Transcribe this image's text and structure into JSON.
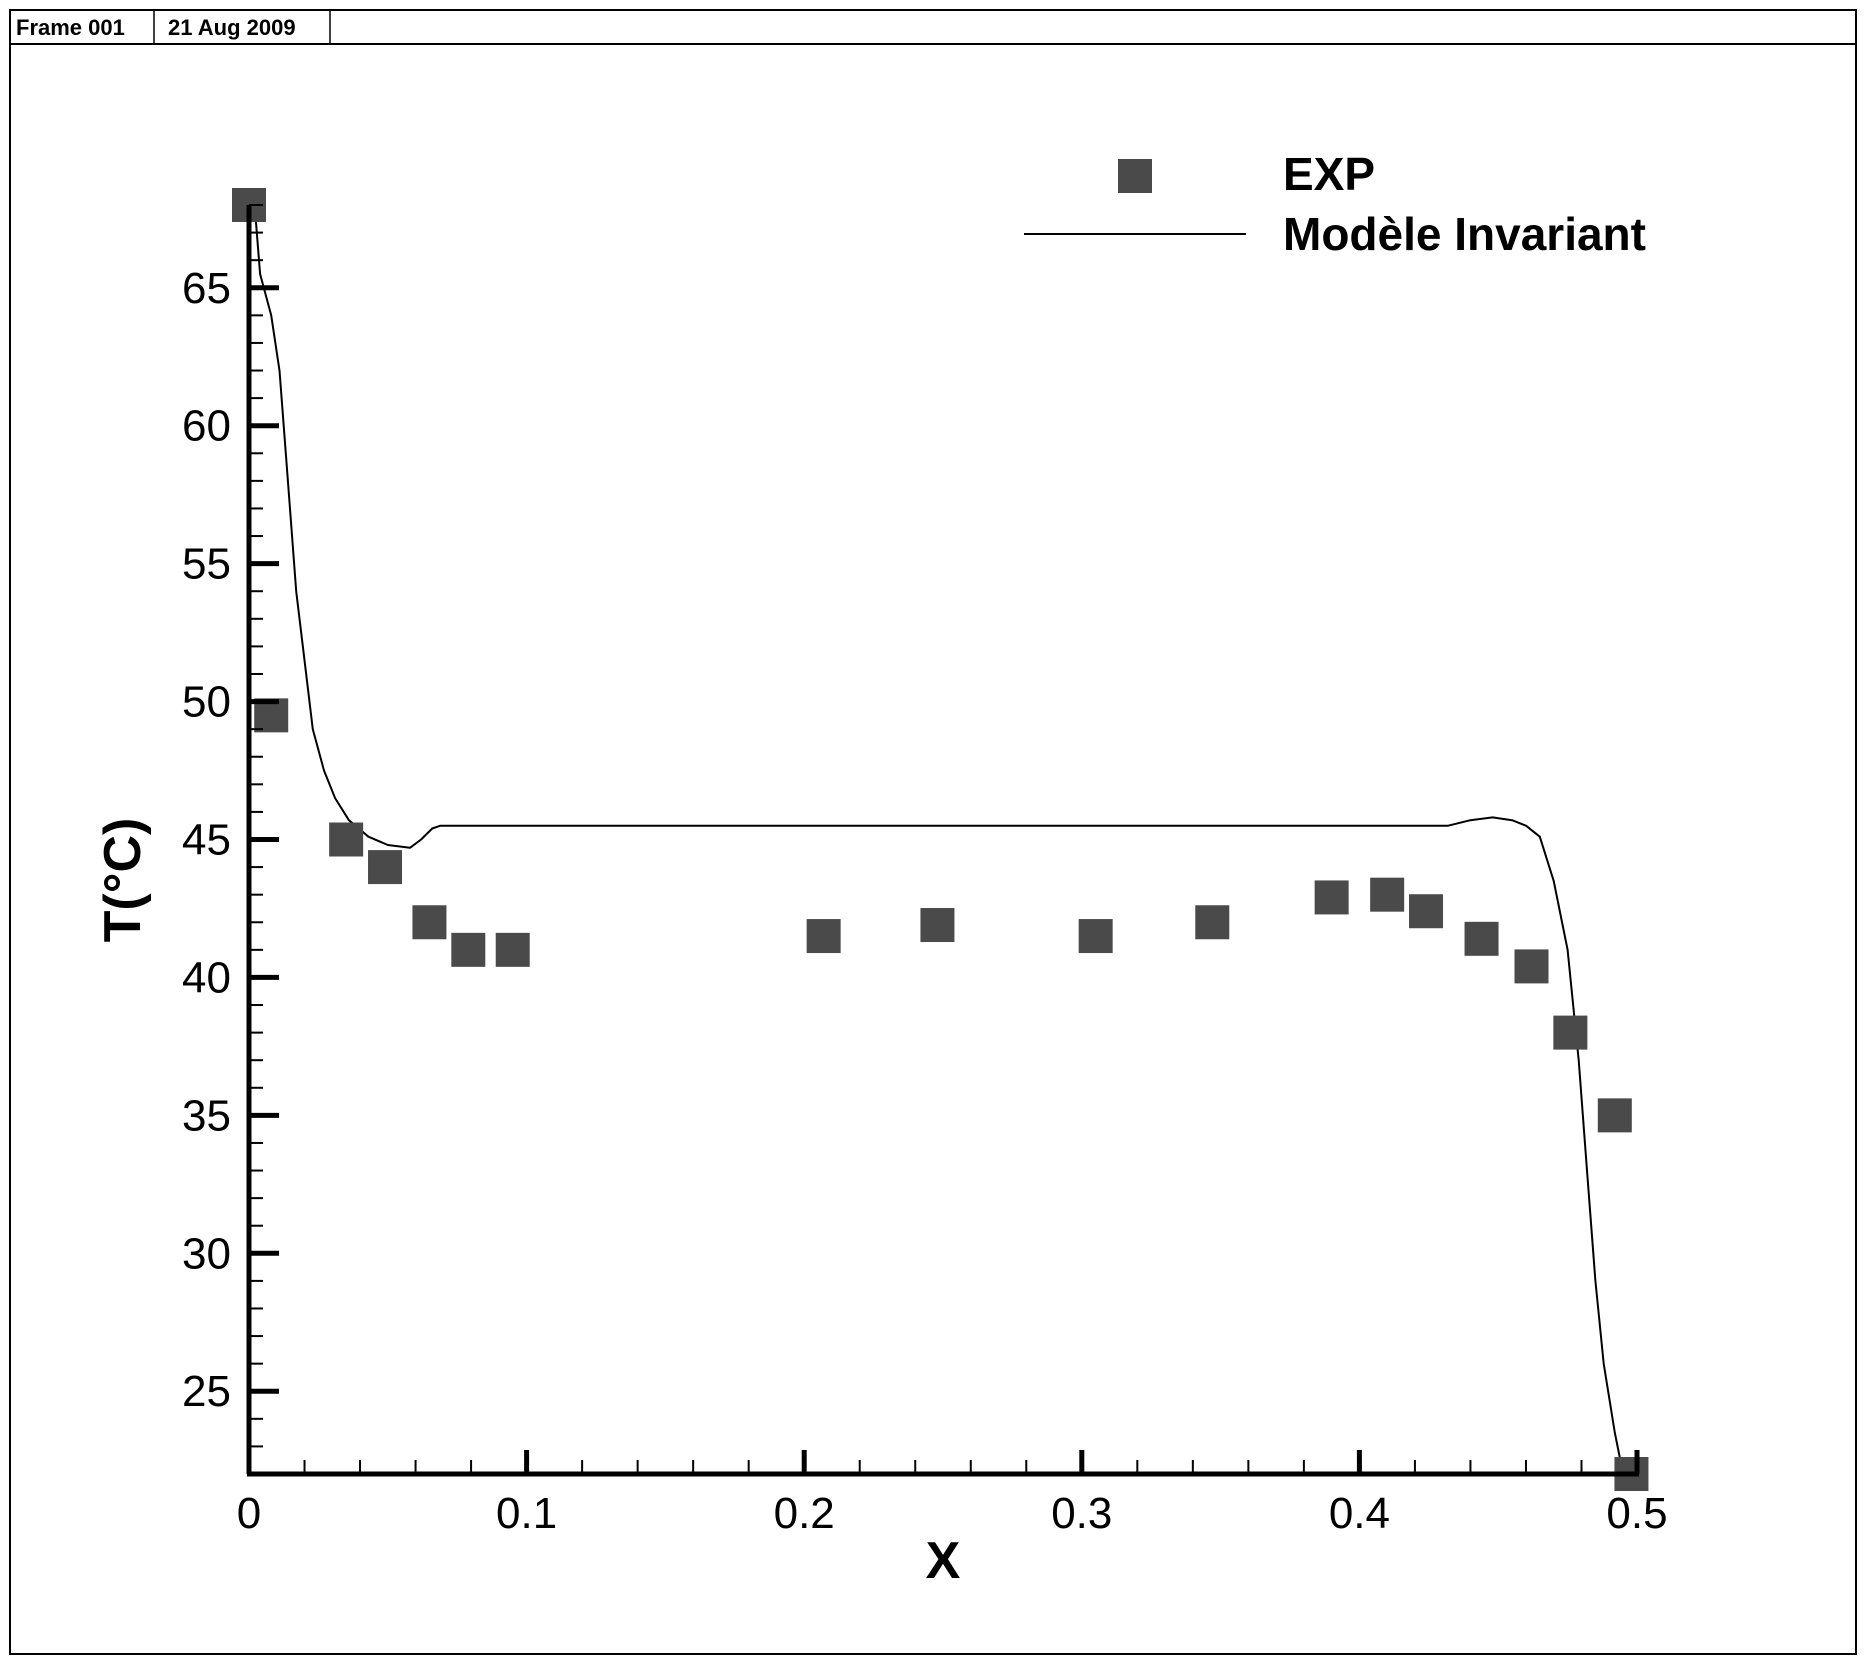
{
  "header": {
    "frame_label": "Frame 001",
    "date_label": "21 Aug 2009"
  },
  "colors": {
    "marker": "#4a4a4a",
    "line": "#000000",
    "axis": "#000000"
  },
  "chart_data": {
    "type": "scatter",
    "title": "",
    "xlabel": "X",
    "ylabel": "T(°C)",
    "xlim": [
      0,
      0.5
    ],
    "ylim": [
      22,
      68
    ],
    "x_ticks": [
      0,
      0.1,
      0.2,
      0.3,
      0.4,
      0.5
    ],
    "x_tick_labels": [
      "0",
      "0.1",
      "0.2",
      "0.3",
      "0.4",
      "0.5"
    ],
    "y_ticks": [
      25,
      30,
      35,
      40,
      45,
      50,
      55,
      60,
      65
    ],
    "y_tick_labels": [
      "25",
      "30",
      "35",
      "40",
      "45",
      "50",
      "55",
      "60",
      "65"
    ],
    "grid": false,
    "legend_position": "top-right",
    "series": [
      {
        "name": "EXP",
        "type": "scatter",
        "marker": "square",
        "points": [
          [
            0.0,
            68.0
          ],
          [
            0.008,
            49.5
          ],
          [
            0.035,
            45.0
          ],
          [
            0.049,
            44.0
          ],
          [
            0.065,
            42.0
          ],
          [
            0.079,
            41.0
          ],
          [
            0.095,
            41.0
          ],
          [
            0.207,
            41.5
          ],
          [
            0.248,
            41.9
          ],
          [
            0.305,
            41.5
          ],
          [
            0.347,
            42.0
          ],
          [
            0.39,
            42.9
          ],
          [
            0.41,
            43.0
          ],
          [
            0.424,
            42.4
          ],
          [
            0.444,
            41.4
          ],
          [
            0.462,
            40.4
          ],
          [
            0.476,
            38.0
          ],
          [
            0.492,
            35.0
          ],
          [
            0.498,
            22.0
          ]
        ]
      },
      {
        "name": "Modèle Invariant",
        "type": "line",
        "points": [
          [
            0.002,
            68.0
          ],
          [
            0.004,
            65.5
          ],
          [
            0.008,
            64.0
          ],
          [
            0.011,
            62.0
          ],
          [
            0.014,
            58.0
          ],
          [
            0.017,
            54.0
          ],
          [
            0.02,
            51.5
          ],
          [
            0.023,
            49.0
          ],
          [
            0.027,
            47.5
          ],
          [
            0.031,
            46.5
          ],
          [
            0.036,
            45.7
          ],
          [
            0.043,
            45.1
          ],
          [
            0.05,
            44.8
          ],
          [
            0.058,
            44.7
          ],
          [
            0.062,
            45.0
          ],
          [
            0.066,
            45.4
          ],
          [
            0.069,
            45.5
          ],
          [
            0.1,
            45.5
          ],
          [
            0.2,
            45.5
          ],
          [
            0.3,
            45.5
          ],
          [
            0.4,
            45.5
          ],
          [
            0.432,
            45.5
          ],
          [
            0.44,
            45.7
          ],
          [
            0.448,
            45.8
          ],
          [
            0.455,
            45.7
          ],
          [
            0.46,
            45.5
          ],
          [
            0.465,
            45.1
          ],
          [
            0.47,
            43.5
          ],
          [
            0.475,
            41.0
          ],
          [
            0.479,
            37.0
          ],
          [
            0.482,
            33.0
          ],
          [
            0.485,
            29.0
          ],
          [
            0.488,
            26.0
          ],
          [
            0.492,
            23.5
          ],
          [
            0.495,
            22.0
          ]
        ]
      }
    ]
  }
}
